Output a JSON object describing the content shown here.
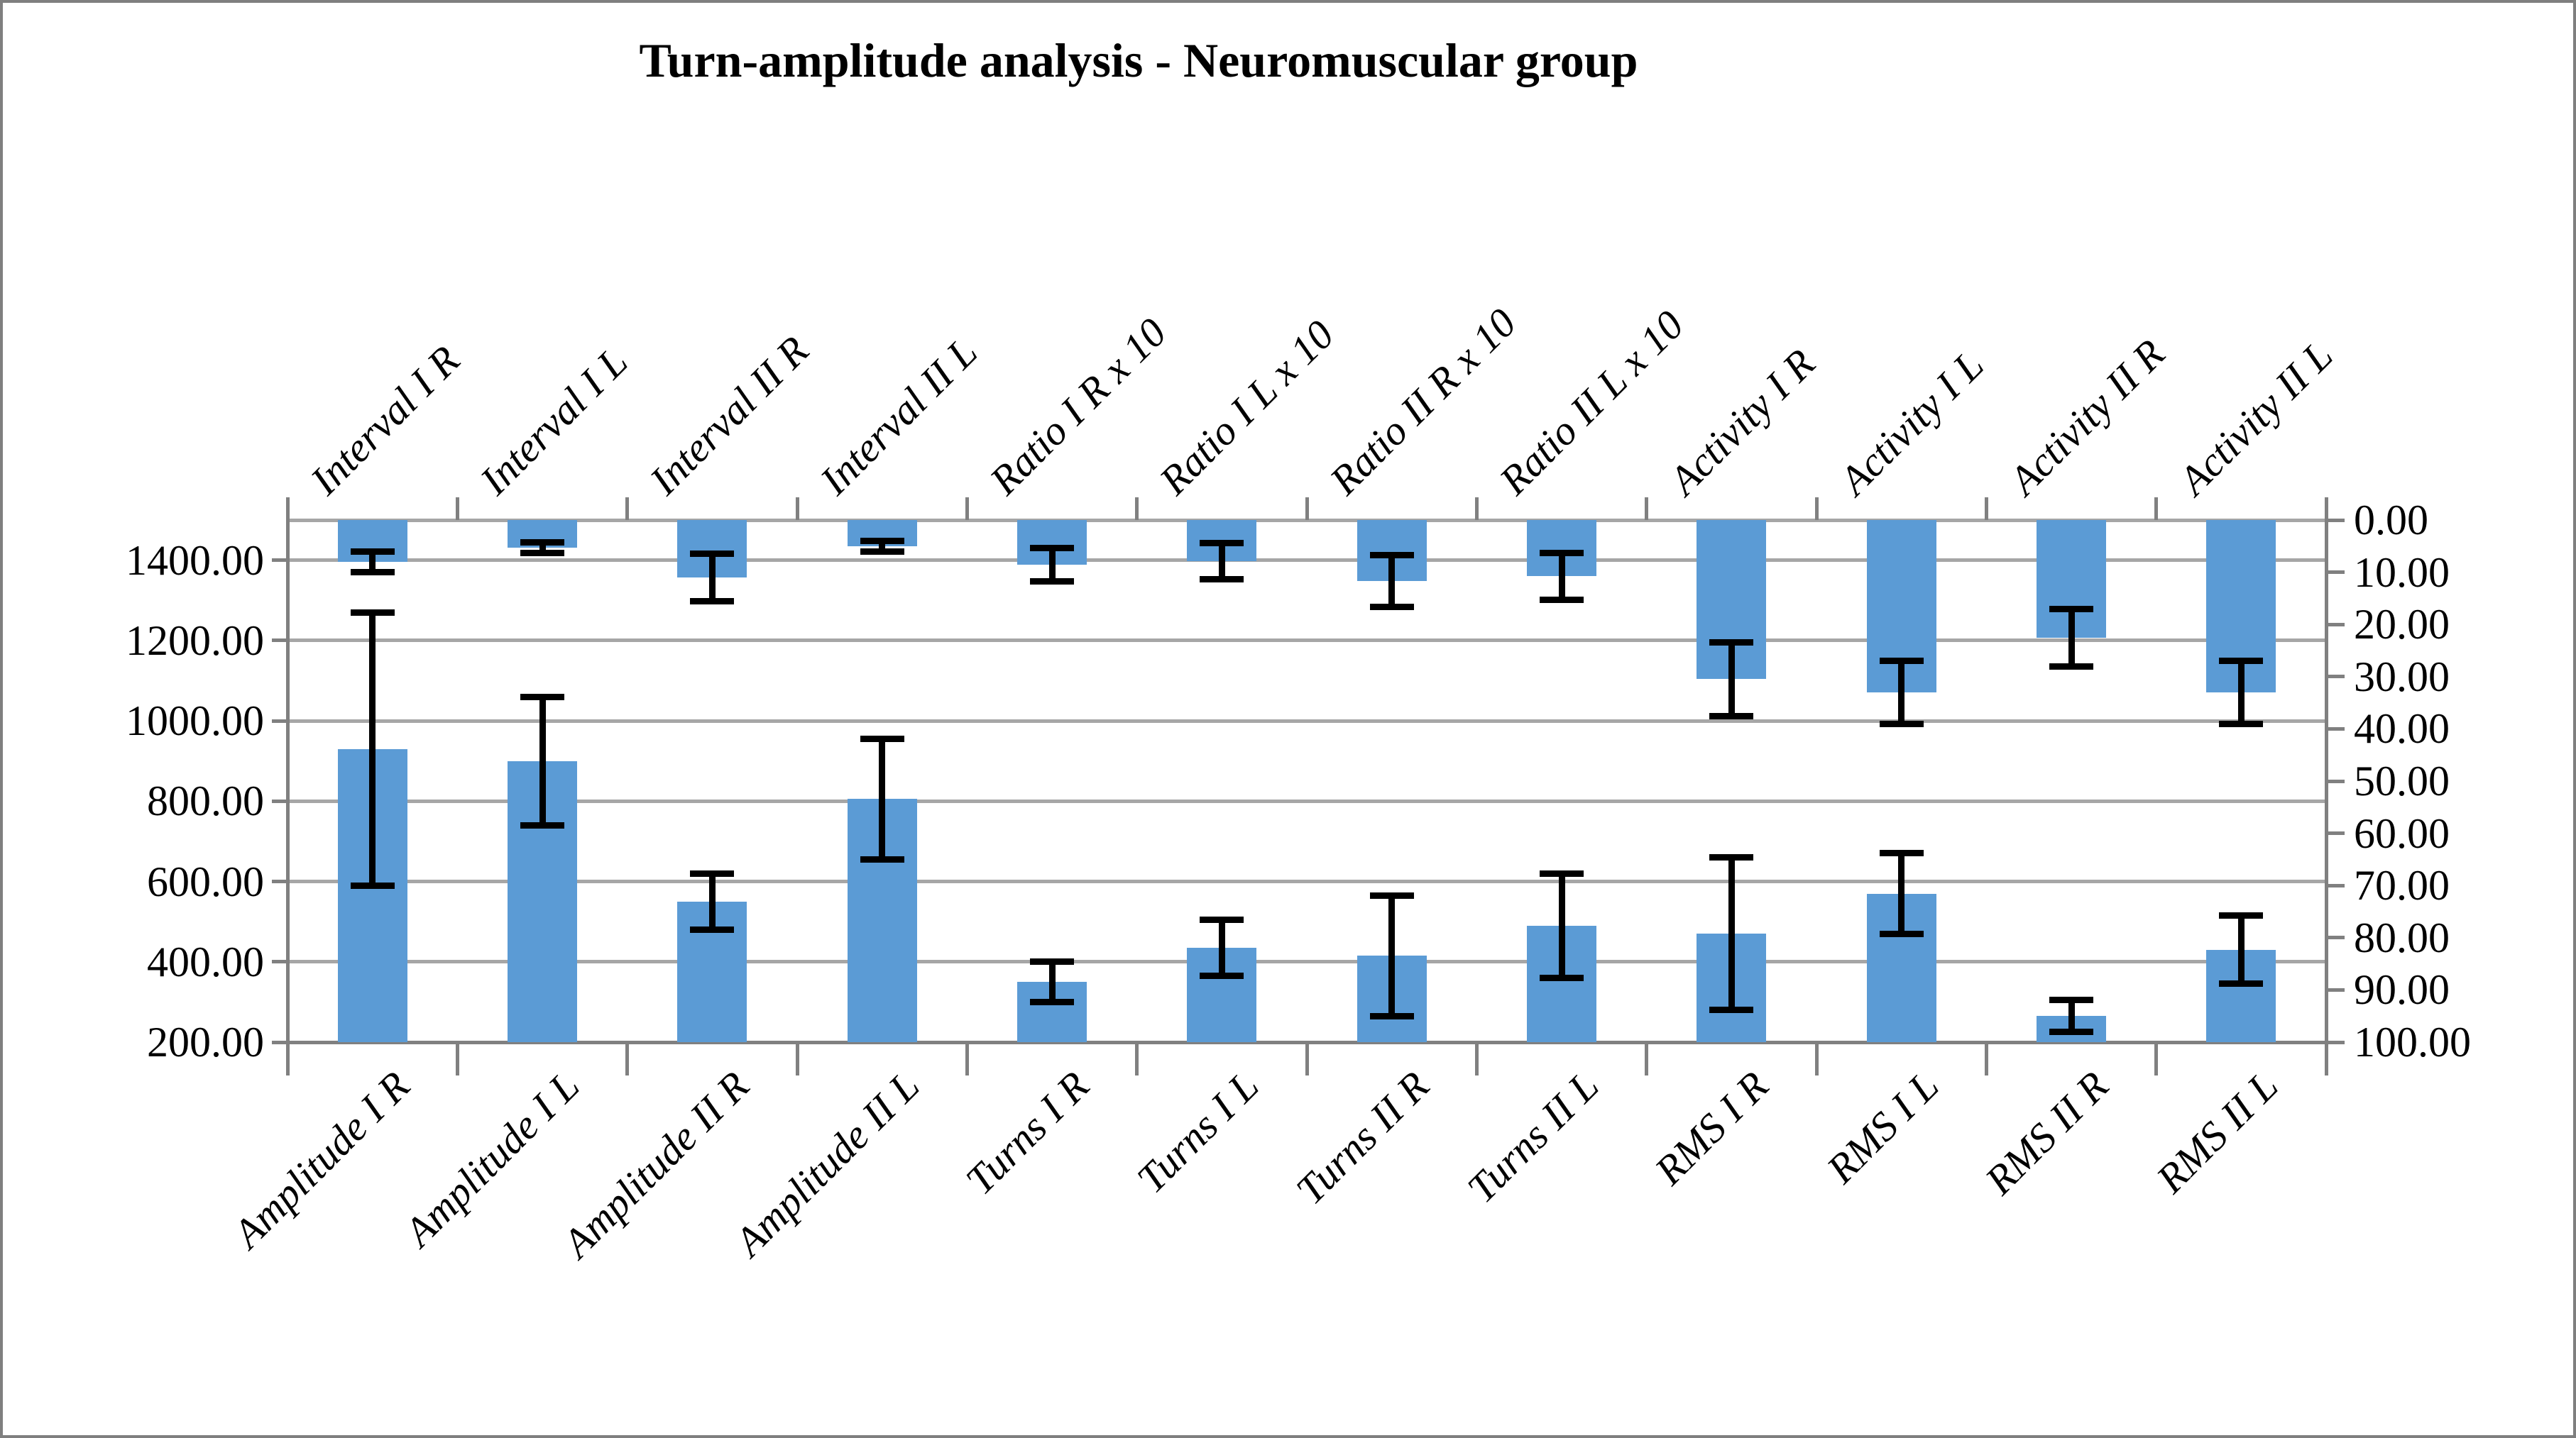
{
  "chart_data": {
    "type": "bar",
    "title": "Turn-amplitude analysis - Neuromuscular group",
    "legend": "none",
    "grid": "horizontal-major",
    "bar_color": "#5b9bd5",
    "error_bar_color": "#000000",
    "gridline_color": "#a6a6a6",
    "axis_color": "#808080",
    "left_axis": {
      "side": "left",
      "min": 200,
      "max": 1500,
      "major_unit": 200,
      "tick_labels": [
        "1400.00",
        "1200.00",
        "1000.00",
        "800.00",
        "600.00",
        "400.00",
        "200.00"
      ],
      "tick_values": [
        1400,
        1200,
        1000,
        800,
        600,
        400,
        200
      ]
    },
    "right_axis": {
      "side": "right",
      "min": 0,
      "max": 100,
      "major_unit": 10,
      "direction": "increases-downward",
      "tick_labels": [
        "0.00",
        "10.00",
        "20.00",
        "30.00",
        "40.00",
        "50.00",
        "60.00",
        "70.00",
        "80.00",
        "90.00",
        "100.00"
      ],
      "tick_values": [
        0,
        10,
        20,
        30,
        40,
        50,
        60,
        70,
        80,
        90,
        100
      ]
    },
    "series": [
      {
        "name": "bottom-bars-left-axis",
        "axis": "left",
        "grows": "up-from-bottom",
        "points": [
          {
            "category": "Amplitude I R",
            "value": 930,
            "error": 340
          },
          {
            "category": "Amplitude I L",
            "value": 900,
            "error": 160
          },
          {
            "category": "Amplitude II R",
            "value": 550,
            "error": 70
          },
          {
            "category": "Amplitude II L",
            "value": 805,
            "error": 150
          },
          {
            "category": "Turns I R",
            "value": 350,
            "error": 50
          },
          {
            "category": "Turns I L",
            "value": 435,
            "error": 70
          },
          {
            "category": "Turns II R",
            "value": 415,
            "error": 150
          },
          {
            "category": "Turns II L",
            "value": 490,
            "error": 130
          },
          {
            "category": "RMS I R",
            "value": 470,
            "error": 190
          },
          {
            "category": "RMS I L",
            "value": 570,
            "error": 100
          },
          {
            "category": "RMS II R",
            "value": 265,
            "error": 40
          },
          {
            "category": "RMS II L",
            "value": 430,
            "error": 85
          }
        ]
      },
      {
        "name": "top-bars-right-axis",
        "axis": "right",
        "grows": "down-from-top",
        "points": [
          {
            "category": "Interval I R",
            "value": 8.0,
            "error": 2.0
          },
          {
            "category": "Interval I L",
            "value": 5.3,
            "error": 1.0
          },
          {
            "category": "Interval II R",
            "value": 11.0,
            "error": 4.5
          },
          {
            "category": "Interval II L",
            "value": 5.0,
            "error": 1.0
          },
          {
            "category": "Ratio I R x 10",
            "value": 8.6,
            "error": 3.2
          },
          {
            "category": "Ratio I L x 10",
            "value": 7.9,
            "error": 3.5
          },
          {
            "category": "Ratio II R x 10",
            "value": 11.7,
            "error": 5.0
          },
          {
            "category": "Ratio II L x 10",
            "value": 10.8,
            "error": 4.5
          },
          {
            "category": "Activity I R",
            "value": 30.5,
            "error": 7.0
          },
          {
            "category": "Activity I L",
            "value": 33.0,
            "error": 6.0
          },
          {
            "category": "Activity II R",
            "value": 22.5,
            "error": 5.5
          },
          {
            "category": "Activity II L",
            "value": 33.0,
            "error": 6.0
          }
        ]
      }
    ]
  }
}
